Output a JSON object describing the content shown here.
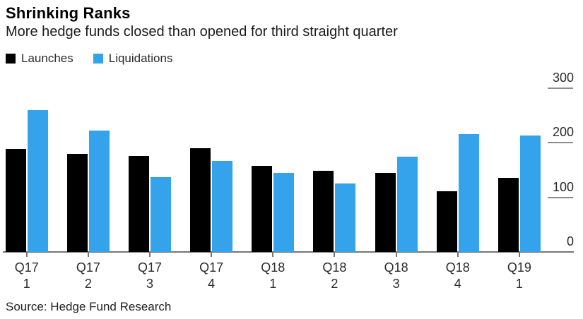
{
  "header": {
    "title": "Shrinking Ranks",
    "subtitle": "More hedge funds closed than opened for third straight quarter"
  },
  "source_note": "Source: Hedge Fund Research",
  "colors": {
    "launches_bar": "#000000",
    "liquidations_bar": "#34a3eb",
    "axis_line": "#757575",
    "tick_segment": "#8c8c8c",
    "label_text": "#2b2b2b",
    "background": "#ffffff"
  },
  "chart_data": {
    "type": "bar",
    "categories": [
      "Q17 1",
      "Q17 2",
      "Q17 3",
      "Q17 4",
      "Q18 1",
      "Q18 2",
      "Q18 3",
      "Q18 4",
      "Q19 1"
    ],
    "series": [
      {
        "name": "Launches",
        "color": "#000000",
        "values": [
          189,
          180,
          176,
          190,
          158,
          148,
          144,
          111,
          136
        ]
      },
      {
        "name": "Liquidations",
        "color": "#34a3eb",
        "values": [
          259,
          222,
          137,
          166,
          145,
          125,
          174,
          215,
          213
        ]
      }
    ],
    "title": "Shrinking Ranks",
    "subtitle": "More hedge funds closed than opened for third straight quarter",
    "xlabel": "",
    "ylabel": "",
    "ylim": [
      0,
      300
    ],
    "yticks": [
      0,
      100,
      200,
      300
    ],
    "grid": "short-right-segments-only",
    "legend_position": "top-left",
    "source": "Source: Hedge Fund Research"
  }
}
